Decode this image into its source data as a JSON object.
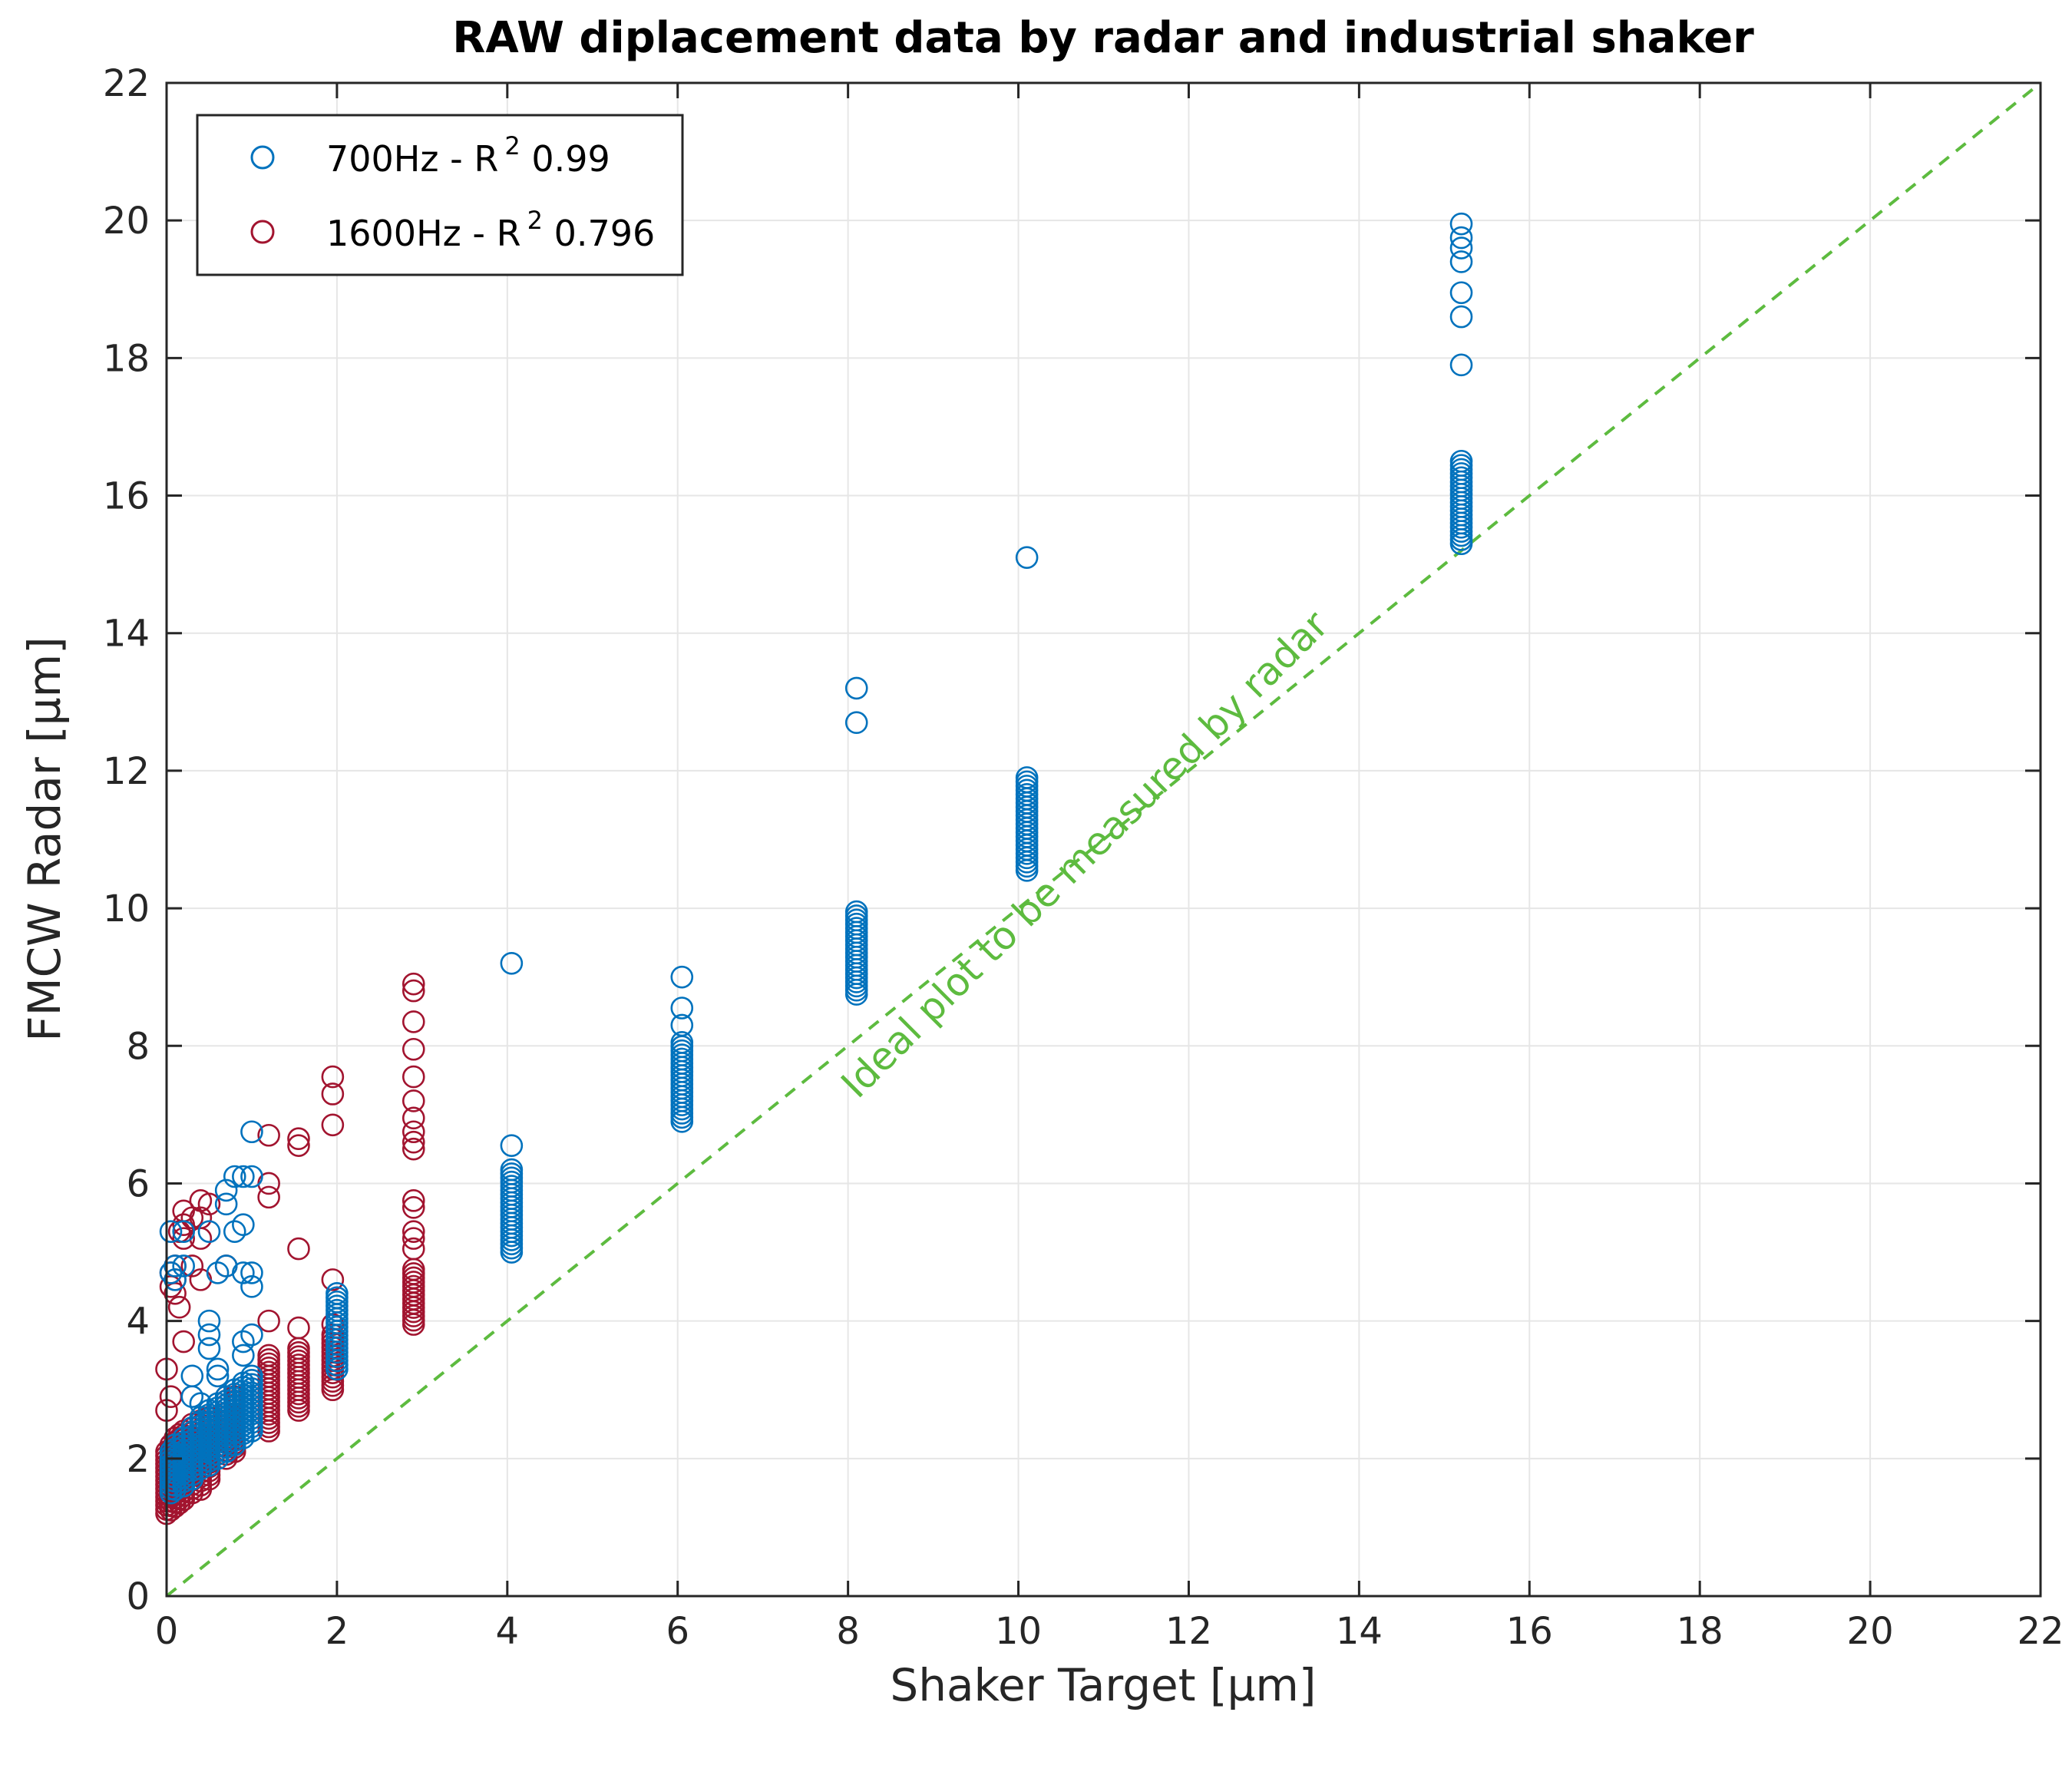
{
  "chart_data": {
    "type": "scatter",
    "title": "RAW diplacement data by radar and industrial shaker",
    "xlabel": "Shaker Target [µm]",
    "ylabel": "FMCW Radar [µm]",
    "xlim": [
      0,
      22
    ],
    "ylim": [
      0,
      22
    ],
    "xticks": [
      0,
      2,
      4,
      6,
      8,
      10,
      12,
      14,
      16,
      18,
      20,
      22
    ],
    "yticks": [
      0,
      2,
      4,
      6,
      8,
      10,
      12,
      14,
      16,
      18,
      20,
      22
    ],
    "grid": true,
    "legend_position": "top-left",
    "colors": {
      "series_700": "#0072BD",
      "series_1600": "#A2142F",
      "ideal": "#5DBB3F"
    },
    "legend": [
      {
        "name": "700Hz",
        "prefix": "700Hz - R",
        "sup": "2",
        "suffix": " 0.99",
        "r2": 0.99
      },
      {
        "name": "1600Hz",
        "prefix": "1600Hz - R",
        "sup": "2",
        "suffix": " 0.796",
        "r2": 0.796
      }
    ],
    "series": [
      {
        "name": "700Hz",
        "color": "#0072BD",
        "groups": [
          {
            "x": 0.05,
            "y_range": [
              1.5,
              2.1
            ],
            "outliers": [
              5.3,
              4.7
            ]
          },
          {
            "x": 0.1,
            "y_range": [
              1.55,
              2.2
            ],
            "outliers": [
              4.8,
              4.6
            ]
          },
          {
            "x": 0.2,
            "y_range": [
              1.6,
              2.3
            ],
            "outliers": [
              5.3,
              4.8
            ]
          },
          {
            "x": 0.3,
            "y_range": [
              1.7,
              2.45
            ],
            "outliers": [
              3.2,
              2.9
            ]
          },
          {
            "x": 0.4,
            "y_range": [
              1.85,
              2.6
            ],
            "outliers": [
              2.8
            ]
          },
          {
            "x": 0.5,
            "y_range": [
              1.9,
              2.7
            ],
            "outliers": [
              4.0,
              3.8,
              3.6,
              5.3
            ]
          },
          {
            "x": 0.6,
            "y_range": [
              2.0,
              2.8
            ],
            "outliers": [
              4.7,
              3.3,
              3.2
            ]
          },
          {
            "x": 0.7,
            "y_range": [
              2.1,
              2.9
            ],
            "outliers": [
              5.9,
              5.7,
              4.8
            ]
          },
          {
            "x": 0.8,
            "y_range": [
              2.2,
              3.0
            ],
            "outliers": [
              6.1,
              5.3
            ]
          },
          {
            "x": 0.9,
            "y_range": [
              2.3,
              3.1
            ],
            "outliers": [
              6.1,
              5.4,
              4.7,
              3.7,
              3.5
            ]
          },
          {
            "x": 1.0,
            "y_range": [
              2.4,
              3.2
            ],
            "outliers": [
              6.75,
              6.1,
              4.7,
              4.5,
              3.8
            ]
          },
          {
            "x": 2.0,
            "y_range": [
              3.3,
              4.4
            ],
            "outliers": []
          },
          {
            "x": 4.05,
            "y_range": [
              5.0,
              6.2
            ],
            "outliers": [
              6.55,
              9.2
            ]
          },
          {
            "x": 6.05,
            "y_range": [
              6.9,
              8.05
            ],
            "outliers": [
              8.3,
              8.55,
              9.0
            ]
          },
          {
            "x": 8.1,
            "y_range": [
              8.75,
              9.95
            ],
            "outliers": [
              12.7,
              13.2
            ]
          },
          {
            "x": 10.1,
            "y_range": [
              10.55,
              11.9
            ],
            "outliers": [
              15.1
            ]
          },
          {
            "x": 15.2,
            "y_range": [
              15.3,
              16.5
            ],
            "outliers": [
              17.9,
              18.6,
              18.95,
              19.4,
              19.6,
              19.75,
              19.95
            ]
          }
        ]
      },
      {
        "name": "1600Hz",
        "color": "#A2142F",
        "groups": [
          {
            "x": 0.0,
            "y_range": [
              1.2,
              2.1
            ],
            "outliers": [
              2.7,
              3.3
            ]
          },
          {
            "x": 0.05,
            "y_range": [
              1.25,
              2.2
            ],
            "outliers": [
              4.7,
              4.5,
              2.9
            ]
          },
          {
            "x": 0.1,
            "y_range": [
              1.3,
              2.3
            ],
            "outliers": [
              4.8,
              4.6,
              4.4
            ]
          },
          {
            "x": 0.15,
            "y_range": [
              1.35,
              2.35
            ],
            "outliers": [
              5.3,
              4.2
            ]
          },
          {
            "x": 0.2,
            "y_range": [
              1.4,
              2.4
            ],
            "outliers": [
              5.6,
              5.4,
              5.2,
              3.7
            ]
          },
          {
            "x": 0.3,
            "y_range": [
              1.5,
              2.5
            ],
            "outliers": [
              5.5,
              4.8
            ]
          },
          {
            "x": 0.4,
            "y_range": [
              1.55,
              2.55
            ],
            "outliers": [
              5.75,
              5.5,
              5.2,
              4.6
            ]
          },
          {
            "x": 0.5,
            "y_range": [
              1.7,
              2.6
            ],
            "outliers": [
              5.7
            ]
          },
          {
            "x": 0.7,
            "y_range": [
              2.0,
              2.9
            ],
            "outliers": [
              4.8
            ]
          },
          {
            "x": 0.8,
            "y_range": [
              2.1,
              2.9
            ],
            "outliers": []
          },
          {
            "x": 1.2,
            "y_range": [
              2.4,
              3.5
            ],
            "outliers": [
              6.7,
              6.0,
              5.8,
              4.0
            ]
          },
          {
            "x": 1.55,
            "y_range": [
              2.7,
              3.6
            ],
            "outliers": [
              6.65,
              6.55,
              5.05,
              3.9
            ]
          },
          {
            "x": 1.95,
            "y_range": [
              3.0,
              3.8
            ],
            "outliers": [
              7.55,
              7.3,
              6.85,
              4.6,
              3.95
            ]
          },
          {
            "x": 2.9,
            "y_range": [
              3.95,
              4.75
            ],
            "outliers": [
              8.9,
              8.8,
              8.35,
              7.95,
              7.55,
              7.2,
              6.95,
              6.75,
              6.6,
              6.5,
              5.75,
              5.65,
              5.3,
              5.2,
              5.05
            ]
          }
        ]
      },
      {
        "name": "ideal",
        "style": "dashed-line",
        "color": "#5DBB3F",
        "x": [
          0,
          22
        ],
        "y": [
          0,
          22
        ],
        "label": "Ideal plot to be measured by radar"
      }
    ],
    "annotation": {
      "text": "Ideal plot to be measured by radar"
    }
  }
}
